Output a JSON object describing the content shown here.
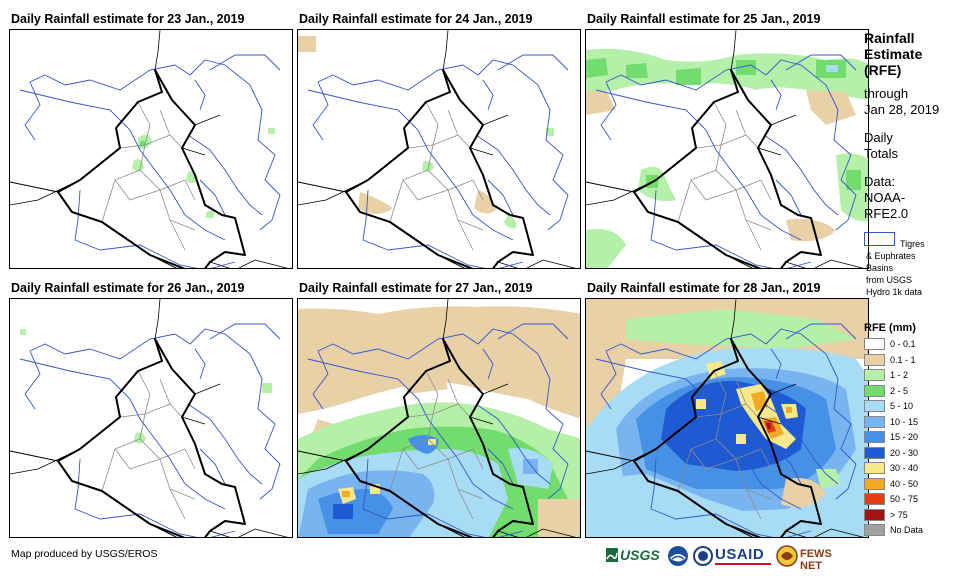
{
  "panels": [
    {
      "title": "Daily Rainfall estimate for 23 Jan., 2019"
    },
    {
      "title": "Daily Rainfall estimate for 24 Jan., 2019"
    },
    {
      "title": "Daily Rainfall estimate for 25 Jan., 2019"
    },
    {
      "title": "Daily Rainfall estimate for 26 Jan., 2019"
    },
    {
      "title": "Daily Rainfall estimate for 27 Jan., 2019"
    },
    {
      "title": "Daily Rainfall estimate for 28 Jan., 2019"
    }
  ],
  "side": {
    "title_lines": [
      "Rainfall",
      "Estimate",
      "(RFE)"
    ],
    "through_lines": [
      "through",
      "Jan 28, 2019"
    ],
    "totals_lines": [
      "Daily",
      "Totals"
    ],
    "data_lines": [
      "Data:",
      "NOAA-",
      "RFE2.0"
    ]
  },
  "basin_legend": {
    "lines": [
      "Tigres",
      "& Euphrates",
      "Basins",
      "from USGS",
      "Hydro 1k data"
    ],
    "color": "#3355cc"
  },
  "legend": {
    "title": "RFE (mm)",
    "items": [
      {
        "label": "0 - 0.1",
        "color": "#ffffff"
      },
      {
        "label": "0.1 - 1",
        "color": "#e8d1a6"
      },
      {
        "label": "1 - 2",
        "color": "#b4f0a8"
      },
      {
        "label": "2 - 5",
        "color": "#73dc6e"
      },
      {
        "label": "5 - 10",
        "color": "#a8dcf5"
      },
      {
        "label": "10 - 15",
        "color": "#78b4f0"
      },
      {
        "label": "15 - 20",
        "color": "#4690e6"
      },
      {
        "label": "20 - 30",
        "color": "#1e5ad2"
      },
      {
        "label": "30 - 40",
        "color": "#f8e88c"
      },
      {
        "label": "40 - 50",
        "color": "#f0aa28"
      },
      {
        "label": "50 - 75",
        "color": "#e63c14"
      },
      {
        "label": "> 75",
        "color": "#a01414"
      },
      {
        "label": "No Data",
        "color": "#a0a0a0"
      }
    ]
  },
  "credit": "Map produced by USGS/EROS",
  "logos": {
    "usgs": "USGS",
    "usaid": "USAID",
    "fewsnet": "FEWS NET"
  }
}
